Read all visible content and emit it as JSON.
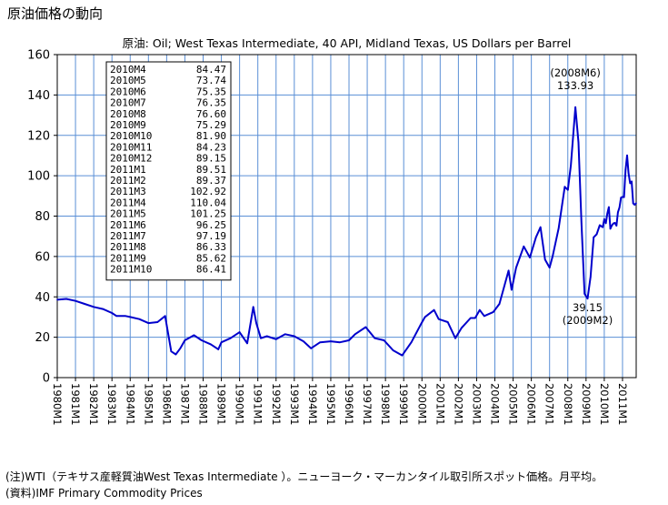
{
  "page_title": "原油価格の動向",
  "notes": [
    "(注)WTI（テキサス産軽質油West Texas Intermediate ）。ニューヨーク・マーカンタイル取引所スポット価格。月平均。",
    "(資料)IMF Primary Commodity Prices"
  ],
  "chart_data": {
    "type": "line",
    "title": "原油: Oil; West Texas Intermediate, 40 API, Midland Texas, US Dollars per Barrel",
    "xlabel": "",
    "ylabel": "",
    "ylim": [
      0,
      160
    ],
    "yticks": [
      0,
      20,
      40,
      60,
      80,
      100,
      120,
      140,
      160
    ],
    "x_range": [
      "1980M1",
      "2011M10"
    ],
    "xticks": [
      "1980M1",
      "1981M1",
      "1982M1",
      "1983M1",
      "1984M1",
      "1985M1",
      "1986M1",
      "1987M1",
      "1988M1",
      "1989M1",
      "1990M1",
      "1991M1",
      "1992M1",
      "1993M1",
      "1994M1",
      "1995M1",
      "1996M1",
      "1997M1",
      "1998M1",
      "1999M1",
      "2000M1",
      "2001M1",
      "2002M1",
      "2003M1",
      "2004M1",
      "2005M1",
      "2006M1",
      "2007M1",
      "2008M1",
      "2009M1",
      "2010M1",
      "2011M1"
    ],
    "grid": true,
    "line_color": "#0000cc",
    "series": [
      {
        "x": [
          "1980M1",
          "1980M7",
          "1981M1",
          "1981M7",
          "1982M1",
          "1982M7",
          "1983M1",
          "1983M4",
          "1983M10",
          "1984M1",
          "1984M7",
          "1985M1",
          "1985M7",
          "1985M12",
          "1986M1",
          "1986M4",
          "1986M7",
          "1986M10",
          "1987M1",
          "1987M7",
          "1987M12",
          "1988M6",
          "1988M11",
          "1989M1",
          "1989M7",
          "1990M1",
          "1990M6",
          "1990M10",
          "1990M12",
          "1991M3",
          "1991M7",
          "1992M1",
          "1992M7",
          "1993M1",
          "1993M7",
          "1993M12",
          "1994M6",
          "1995M1",
          "1995M7",
          "1996M1",
          "1996M5",
          "1996M12",
          "1997M6",
          "1997M12",
          "1998M6",
          "1998M12",
          "1999M6",
          "1999M12",
          "2000M3",
          "2000M9",
          "2000M12",
          "2001M6",
          "2001M11",
          "2002M3",
          "2002M9",
          "2002M12",
          "2003M3",
          "2003M6",
          "2003M12",
          "2004M4",
          "2004M10",
          "2004M12",
          "2005M3",
          "2005M8",
          "2005M12",
          "2006M4",
          "2006M7",
          "2006M10",
          "2007M1",
          "2007M3",
          "2007M7",
          "2007M11",
          "2008M1",
          "2008M3",
          "2008M6",
          "2008M8",
          "2008M10",
          "2008M12",
          "2009M2",
          "2009M4",
          "2009M6",
          "2009M8",
          "2009M10",
          "2009M12",
          "2010M1",
          "2010M2",
          "2010M3",
          "2010M4",
          "2010M5",
          "2010M6",
          "2010M7",
          "2010M8",
          "2010M9",
          "2010M10",
          "2010M11",
          "2010M12",
          "2011M1",
          "2011M2",
          "2011M3",
          "2011M4",
          "2011M5",
          "2011M6",
          "2011M7",
          "2011M8",
          "2011M9",
          "2011M10"
        ],
        "values": [
          38.6,
          39.0,
          38.0,
          36.5,
          35.0,
          34.0,
          32.0,
          30.5,
          30.5,
          30.0,
          29.0,
          27.0,
          27.5,
          30.5,
          26.0,
          13.0,
          11.5,
          14.5,
          18.5,
          21.0,
          18.5,
          16.5,
          14.0,
          17.5,
          19.5,
          22.5,
          17.0,
          35.0,
          27.0,
          19.5,
          20.5,
          19.0,
          21.5,
          20.5,
          18.0,
          14.5,
          17.5,
          18.0,
          17.5,
          18.5,
          21.5,
          25.0,
          19.5,
          18.5,
          13.5,
          11.0,
          17.5,
          26.0,
          30.0,
          33.5,
          29.0,
          27.5,
          19.5,
          24.5,
          29.5,
          29.5,
          33.5,
          30.5,
          32.5,
          36.5,
          53.0,
          43.5,
          54.5,
          65.0,
          59.5,
          69.5,
          74.5,
          58.5,
          54.5,
          60.0,
          74.0,
          94.5,
          93.0,
          105.0,
          133.93,
          116.5,
          76.5,
          41.5,
          39.15,
          50.0,
          69.5,
          71.0,
          75.5,
          74.5,
          78.5,
          76.5,
          81.2,
          84.47,
          73.74,
          75.35,
          76.35,
          76.6,
          75.29,
          81.9,
          84.23,
          89.15,
          89.51,
          89.37,
          102.92,
          110.04,
          101.25,
          96.25,
          97.19,
          86.33,
          85.62,
          86.41
        ]
      }
    ],
    "data_table": [
      {
        "label": "2010M4",
        "value": "84.47"
      },
      {
        "label": "2010M5",
        "value": "73.74"
      },
      {
        "label": "2010M6",
        "value": "75.35"
      },
      {
        "label": "2010M7",
        "value": "76.35"
      },
      {
        "label": "2010M8",
        "value": "76.60"
      },
      {
        "label": "2010M9",
        "value": "75.29"
      },
      {
        "label": "2010M10",
        "value": "81.90"
      },
      {
        "label": "2010M11",
        "value": "84.23"
      },
      {
        "label": "2010M12",
        "value": "89.15"
      },
      {
        "label": "2011M1",
        "value": "89.51"
      },
      {
        "label": "2011M2",
        "value": "89.37"
      },
      {
        "label": "2011M3",
        "value": "102.92"
      },
      {
        "label": "2011M4",
        "value": "110.04"
      },
      {
        "label": "2011M5",
        "value": "101.25"
      },
      {
        "label": "2011M6",
        "value": "96.25"
      },
      {
        "label": "2011M7",
        "value": "97.19"
      },
      {
        "label": "2011M8",
        "value": "86.33"
      },
      {
        "label": "2011M9",
        "value": "85.62"
      },
      {
        "label": "2011M10",
        "value": "86.41"
      }
    ],
    "annotations": [
      {
        "x": "2008M6",
        "y": 133.93,
        "lines": [
          "(2008M6)",
          "133.93"
        ],
        "position": "above"
      },
      {
        "x": "2009M2",
        "y": 39.15,
        "lines": [
          "39.15",
          "(2009M2)"
        ],
        "position": "below"
      }
    ]
  }
}
